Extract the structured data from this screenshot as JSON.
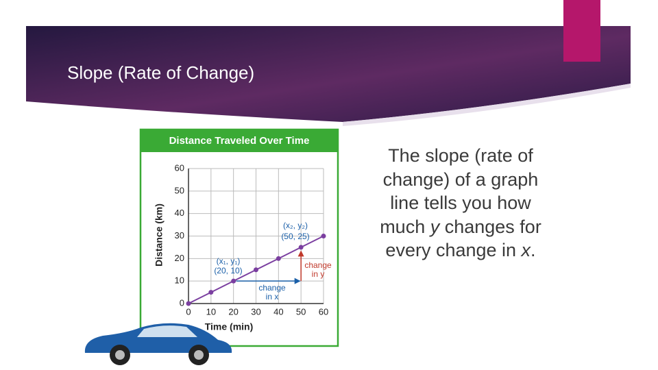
{
  "slide": {
    "title": "Slope (Rate of Change)",
    "body": [
      "The slope (rate of change) of a graph line tells you how much ",
      "y",
      " changes for every change in ",
      "x",
      "."
    ]
  },
  "chart_data": {
    "type": "line",
    "title": "Distance Traveled Over Time",
    "x_label": "Time (min)",
    "y_label": "Distance (km)",
    "x": [
      0,
      10,
      20,
      30,
      40,
      50,
      60
    ],
    "values": [
      0,
      5,
      10,
      15,
      20,
      25,
      30
    ],
    "color": "#7b3fa0",
    "xlim": [
      0,
      60
    ],
    "xticks": [
      0,
      10,
      20,
      30,
      40,
      50,
      60
    ],
    "ylim": [
      0,
      60
    ],
    "yticks": [
      0,
      10,
      20,
      30,
      40,
      50,
      60
    ],
    "grid": true,
    "annotations": [
      "(x₁, y₁)",
      "(20, 10)",
      "(x₂, y₂)",
      "(50, 25)",
      "change",
      "in x",
      "change",
      "in y"
    ]
  }
}
